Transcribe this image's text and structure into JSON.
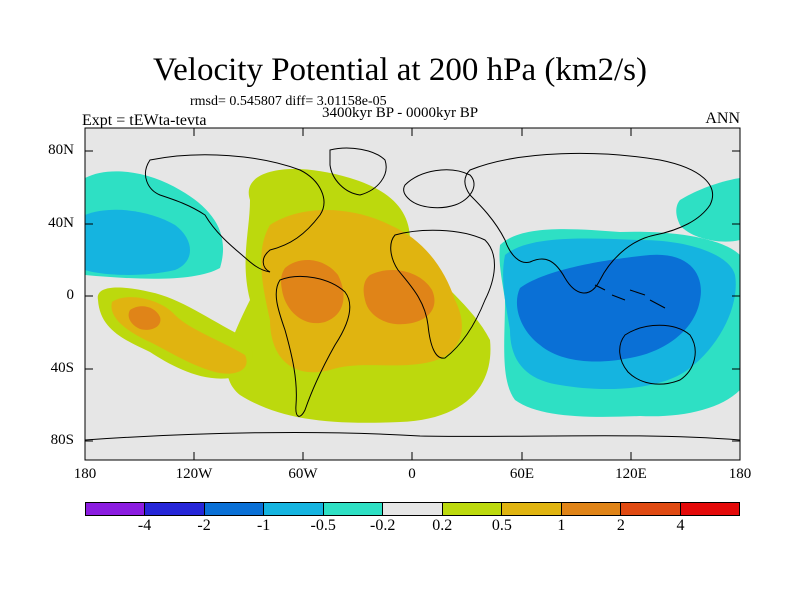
{
  "title": "Velocity Potential at 200 hPa (km2/s)",
  "stats_line": "rmsd= 0.545807 diff= 3.01158e-05",
  "experiment": "Expt = tEWta-tevta",
  "period": "3400kyr BP - 0000kyr BP",
  "season": "ANN",
  "lat_ticks": [
    "80N",
    "40N",
    "0",
    "40S",
    "80S"
  ],
  "lon_ticks": [
    "180",
    "120W",
    "60W",
    "0",
    "60E",
    "120E",
    "180"
  ],
  "colorbar": {
    "colors": [
      "#8b1ce0",
      "#2626d8",
      "#0a70d6",
      "#15b4e0",
      "#2ee0c4",
      "#e6e6e6",
      "#bcd90d",
      "#e0b410",
      "#e08418",
      "#e04a12",
      "#e40a0a"
    ],
    "labels": [
      "-4",
      "-2",
      "-1",
      "-0.5",
      "-0.2",
      "0.2",
      "0.5",
      "1",
      "2",
      "4"
    ]
  }
}
